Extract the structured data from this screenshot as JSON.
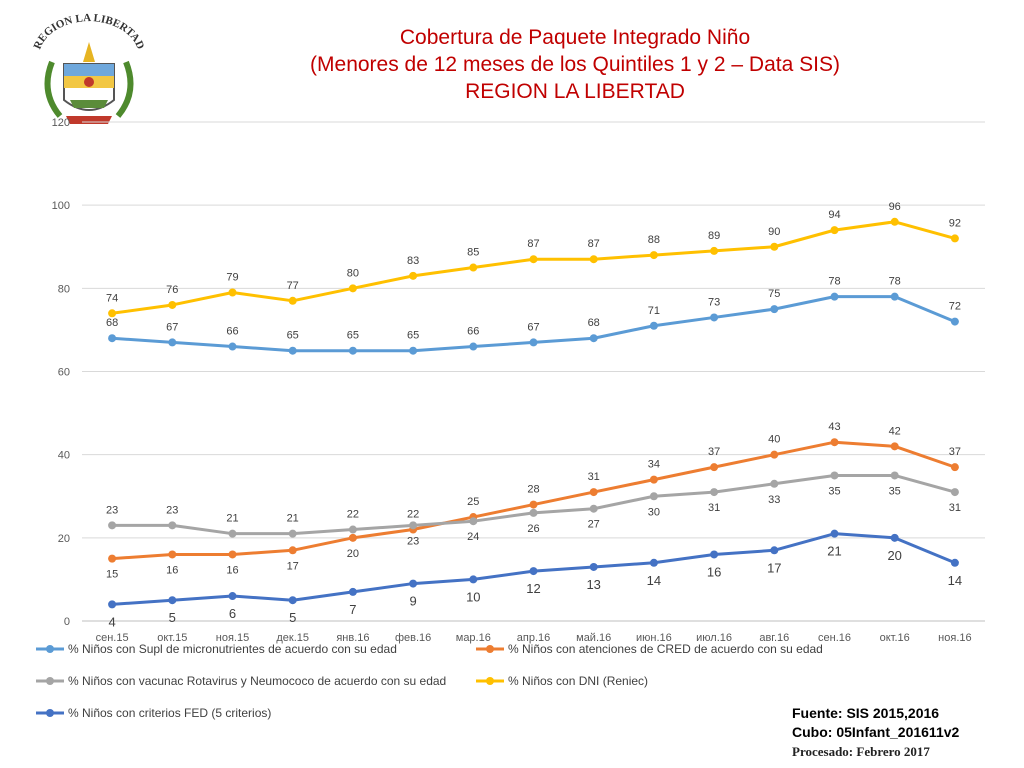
{
  "header": {
    "logo_text": "REGION LA LIBERTAD",
    "title_lines": [
      "Cobertura de Paquete Integrado Niño",
      "(Menores de 12 meses de los Quintiles 1 y 2 – Data SIS)",
      "REGION LA LIBERTAD"
    ]
  },
  "source": {
    "line1": "Fuente: SIS 2015,2016",
    "line2": "Cubo: 05Infant_201611v2",
    "line3": "Procesado: Febrero 2017"
  },
  "chart_data": {
    "type": "line",
    "title": "Cobertura de Paquete Integrado Niño",
    "xlabel": "",
    "ylabel": "",
    "ylim": [
      0,
      120
    ],
    "yticks": [
      0,
      20,
      40,
      60,
      80,
      100,
      120
    ],
    "grid": true,
    "legend_position": "bottom",
    "categories": [
      "сен.15",
      "окт.15",
      "ноя.15",
      "дек.15",
      "янв.16",
      "фев.16",
      "мар.16",
      "апр.16",
      "май.16",
      "июн.16",
      "июл.16",
      "авг.16",
      "сен.16",
      "окт.16",
      "ноя.16"
    ],
    "series": [
      {
        "name": "% Niños con Supl de micronutrientes de acuerdo con su edad",
        "color": "#5b9bd5",
        "label_pos": "above",
        "label_size": 11,
        "values": [
          68,
          67,
          66,
          65,
          65,
          65,
          66,
          67,
          68,
          71,
          73,
          75,
          78,
          78,
          72
        ]
      },
      {
        "name": "% Niños  con atenciones de CRED de acuerdo con su edad",
        "color": "#ed7d31",
        "label_pos": "mixed",
        "label_size": 11,
        "values": [
          15,
          16,
          16,
          17,
          20,
          22,
          25,
          28,
          31,
          34,
          37,
          40,
          43,
          42,
          37
        ]
      },
      {
        "name": "% Niños con vacunac Rotavirus y Neumococo de acuerdo con su edad",
        "color": "#a5a5a5",
        "label_pos": "mixed",
        "label_size": 11,
        "values": [
          23,
          23,
          21,
          21,
          22,
          23,
          24,
          26,
          27,
          30,
          31,
          33,
          35,
          35,
          31
        ]
      },
      {
        "name": "% Niños con DNI (Reniec)",
        "color": "#ffc000",
        "label_pos": "above",
        "label_size": 11,
        "values": [
          74,
          76,
          79,
          77,
          80,
          83,
          85,
          87,
          87,
          88,
          89,
          90,
          94,
          96,
          92
        ]
      },
      {
        "name": "% Niños con criterios FED (5 criterios)",
        "color": "#4472c4",
        "label_pos": "below",
        "label_size": 13,
        "values": [
          4,
          5,
          6,
          5,
          7,
          9,
          10,
          12,
          13,
          14,
          16,
          17,
          21,
          20,
          14
        ]
      }
    ]
  }
}
